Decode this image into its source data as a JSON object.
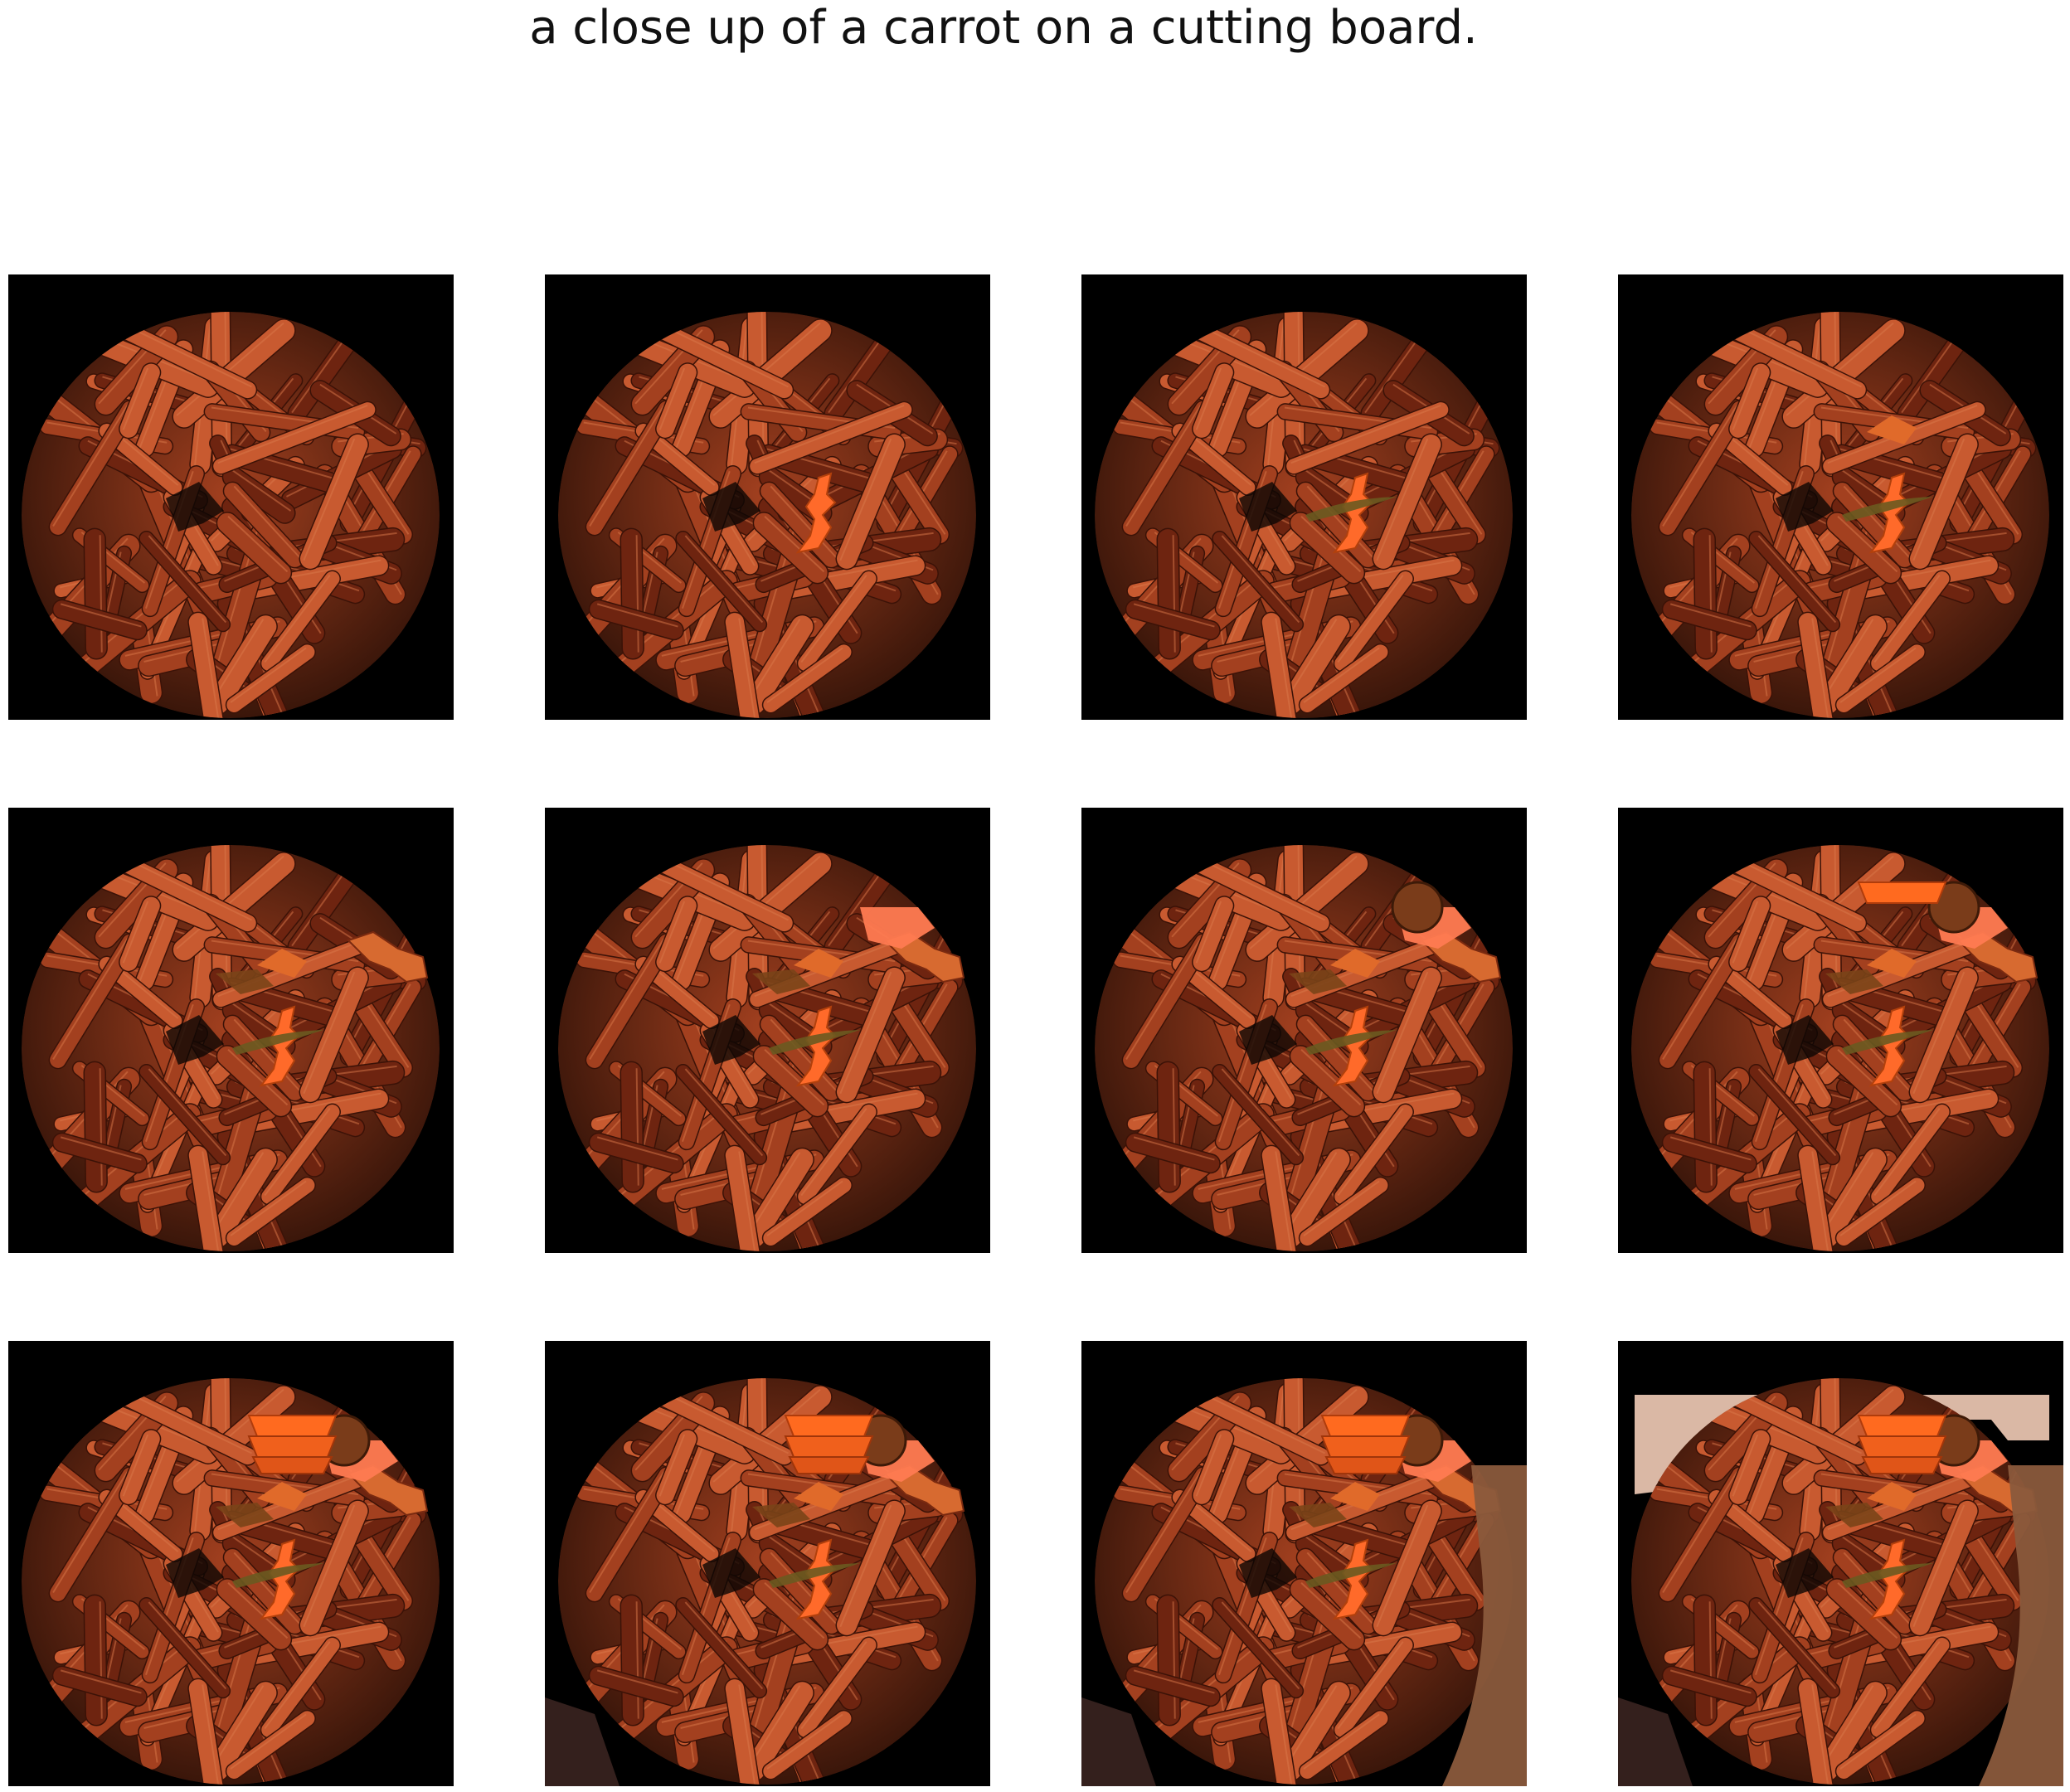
{
  "figure": {
    "caption": "a close up of a carrot on a cutting board."
  },
  "tiles": [
    {
      "name": "frame-1",
      "overlays": []
    },
    {
      "name": "frame-2",
      "overlays": [
        "center-squiggle"
      ]
    },
    {
      "name": "frame-3",
      "overlays": [
        "center-squiggle",
        "center-leaf"
      ]
    },
    {
      "name": "frame-4",
      "overlays": [
        "center-squiggle",
        "center-leaf",
        "top-chip"
      ]
    },
    {
      "name": "frame-5",
      "overlays": [
        "center-squiggle",
        "center-leaf",
        "top-chip",
        "right-shred"
      ]
    },
    {
      "name": "frame-6",
      "overlays": [
        "center-squiggle",
        "center-leaf",
        "top-chip",
        "right-shred",
        "corner-slice"
      ]
    },
    {
      "name": "frame-7",
      "overlays": [
        "center-squiggle",
        "center-leaf",
        "top-chip",
        "right-shred",
        "corner-slice",
        "brown-ball"
      ]
    },
    {
      "name": "frame-8",
      "overlays": [
        "center-squiggle",
        "center-leaf",
        "top-chip",
        "right-shred",
        "corner-slice",
        "brown-ball",
        "top-slab"
      ]
    },
    {
      "name": "frame-9",
      "overlays": [
        "center-squiggle",
        "center-leaf",
        "top-chip",
        "right-shred",
        "corner-slice",
        "brown-ball",
        "top-slab",
        "stacked-slabs"
      ]
    },
    {
      "name": "frame-10",
      "overlays": [
        "center-squiggle",
        "center-leaf",
        "top-chip",
        "right-shred",
        "corner-slice",
        "brown-ball",
        "top-slab",
        "stacked-slabs",
        "bottom-left-shadow"
      ]
    },
    {
      "name": "frame-11",
      "overlays": [
        "center-squiggle",
        "center-leaf",
        "top-chip",
        "right-shred",
        "corner-slice",
        "brown-ball",
        "top-slab",
        "stacked-slabs",
        "bottom-left-shadow",
        "right-board"
      ]
    },
    {
      "name": "frame-12",
      "overlays": [
        "center-squiggle",
        "center-leaf",
        "top-chip",
        "right-shred",
        "corner-slice",
        "brown-ball",
        "top-slab",
        "stacked-slabs",
        "bottom-left-shadow",
        "right-board",
        "top-backdrop"
      ]
    }
  ],
  "colors": {
    "background": "#000000",
    "carrot_dark": "#6e2410",
    "carrot_mid": "#a3401f",
    "carrot_light": "#c85a30",
    "accent_orange": "#ff6a2a",
    "backdrop_pink": "#e6c2ae",
    "board_brown": "#8a5a3c"
  }
}
